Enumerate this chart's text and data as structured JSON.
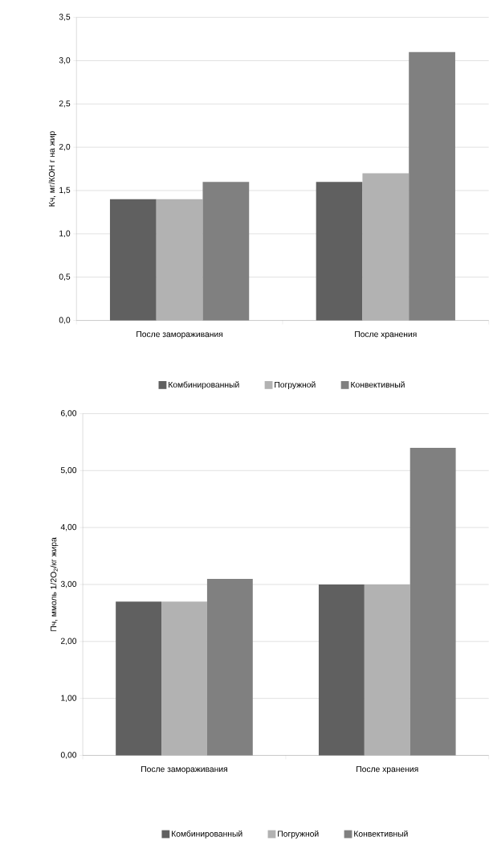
{
  "chart_data": [
    {
      "type": "bar",
      "ylabel": "Кч, мг/КОН г на жир",
      "categories": [
        "После замораживания",
        "После хранения"
      ],
      "series": [
        {
          "name": "Комбинированный",
          "color": "#606060",
          "values": [
            1.4,
            1.6
          ]
        },
        {
          "name": "Погружной",
          "color": "#b2b2b2",
          "values": [
            1.4,
            1.7
          ]
        },
        {
          "name": "Конвективный",
          "color": "#808080",
          "values": [
            1.6,
            3.1
          ]
        }
      ],
      "ylim": [
        0,
        3.5
      ],
      "yticks": [
        {
          "value": 0,
          "label": "0,0"
        },
        {
          "value": 0.5,
          "label": "0,5"
        },
        {
          "value": 1,
          "label": "1,0"
        },
        {
          "value": 1.5,
          "label": "1,5"
        },
        {
          "value": 2,
          "label": "2,0"
        },
        {
          "value": 2.5,
          "label": "2,5"
        },
        {
          "value": 3,
          "label": "3,0"
        },
        {
          "value": 3.5,
          "label": "3,5"
        }
      ],
      "grid": "y",
      "legend": "bottom"
    },
    {
      "type": "bar",
      "ylabel": "Пч, ммоль 1/2O$_{2}$/кг жира",
      "categories": [
        "После замораживания",
        "После хранения"
      ],
      "series": [
        {
          "name": "Комбинированный",
          "color": "#606060",
          "values": [
            2.7,
            3.0
          ]
        },
        {
          "name": "Погружной",
          "color": "#b2b2b2",
          "values": [
            2.7,
            3.0
          ]
        },
        {
          "name": "Конвективный",
          "color": "#808080",
          "values": [
            3.1,
            5.4
          ]
        }
      ],
      "ylim": [
        0,
        6
      ],
      "yticks": [
        {
          "value": 0,
          "label": "0,00"
        },
        {
          "value": 1,
          "label": "1,00"
        },
        {
          "value": 2,
          "label": "2,00"
        },
        {
          "value": 3,
          "label": "3,00"
        },
        {
          "value": 4,
          "label": "4,00"
        },
        {
          "value": 5,
          "label": "5,00"
        },
        {
          "value": 6,
          "label": "6,00"
        }
      ],
      "grid": "y",
      "legend": "bottom"
    }
  ]
}
